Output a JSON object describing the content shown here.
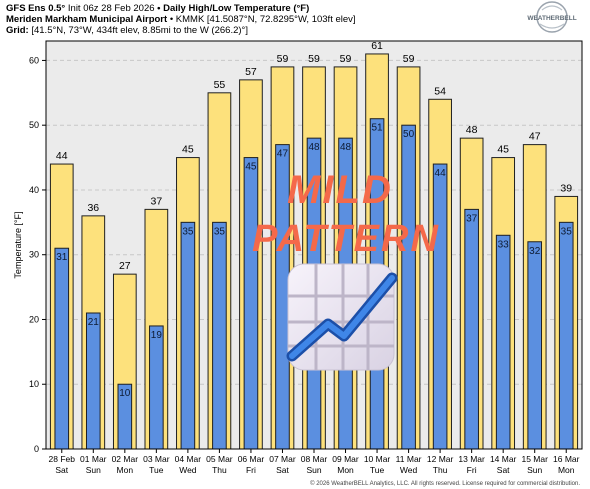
{
  "header": {
    "line1_model": "GFS Ens 0.5°",
    "line1_init": "Init 06z 28 Feb 2026",
    "line1_sep": "•",
    "line1_product": "Daily High/Low Temperature (°F)",
    "line2_station": "Meriden Markham Municipal Airport",
    "line2_sep": "•",
    "line2_details": "KMMK [41.5087°N, 72.8295°W, 103ft elev]",
    "line3_grid_label": "Grid:",
    "line3_grid": "[41.5°N, 73°W, 434ft elev, 8.85mi to the W (266.2)°]"
  },
  "logo": {
    "text": "WEATHERBELL"
  },
  "overlay": {
    "text_line1": "MILD",
    "text_line2": "PATTERN",
    "text_color": "#f4694a",
    "emoji_icon": "chart-increasing-icon"
  },
  "copyright": "© 2026 WeatherBELL Analytics, LLC. All rights reserved. License required for commercial distribution.",
  "colors": {
    "high_bar": "#fde17c",
    "low_bar": "#5b8fe0",
    "bar_outline": "#1f1f1f",
    "plot_bg": "#ebebeb"
  },
  "chart_data": {
    "type": "bar",
    "ylabel": "Temperature [°F]",
    "ylim": [
      0,
      63
    ],
    "yticks": [
      0,
      10,
      20,
      30,
      40,
      50,
      60
    ],
    "grid": true,
    "categories": [
      {
        "date": "28 Feb",
        "day": "Sat"
      },
      {
        "date": "01 Mar",
        "day": "Sun"
      },
      {
        "date": "02 Mar",
        "day": "Mon"
      },
      {
        "date": "03 Mar",
        "day": "Tue"
      },
      {
        "date": "04 Mar",
        "day": "Wed"
      },
      {
        "date": "05 Mar",
        "day": "Thu"
      },
      {
        "date": "06 Mar",
        "day": "Fri"
      },
      {
        "date": "07 Mar",
        "day": "Sat"
      },
      {
        "date": "08 Mar",
        "day": "Sun"
      },
      {
        "date": "09 Mar",
        "day": "Mon"
      },
      {
        "date": "10 Mar",
        "day": "Tue"
      },
      {
        "date": "11 Mar",
        "day": "Wed"
      },
      {
        "date": "12 Mar",
        "day": "Thu"
      },
      {
        "date": "13 Mar",
        "day": "Fri"
      },
      {
        "date": "14 Mar",
        "day": "Sat"
      },
      {
        "date": "15 Mar",
        "day": "Sun"
      },
      {
        "date": "16 Mar",
        "day": "Mon"
      }
    ],
    "series": [
      {
        "values": [
          44,
          36,
          27,
          37,
          45,
          55,
          57,
          59,
          59,
          59,
          61,
          59,
          54,
          48,
          45,
          47,
          39
        ]
      },
      {
        "values": [
          31,
          21,
          10,
          19,
          35,
          35,
          45,
          47,
          48,
          48,
          51,
          50,
          44,
          37,
          33,
          32,
          35
        ]
      }
    ]
  }
}
